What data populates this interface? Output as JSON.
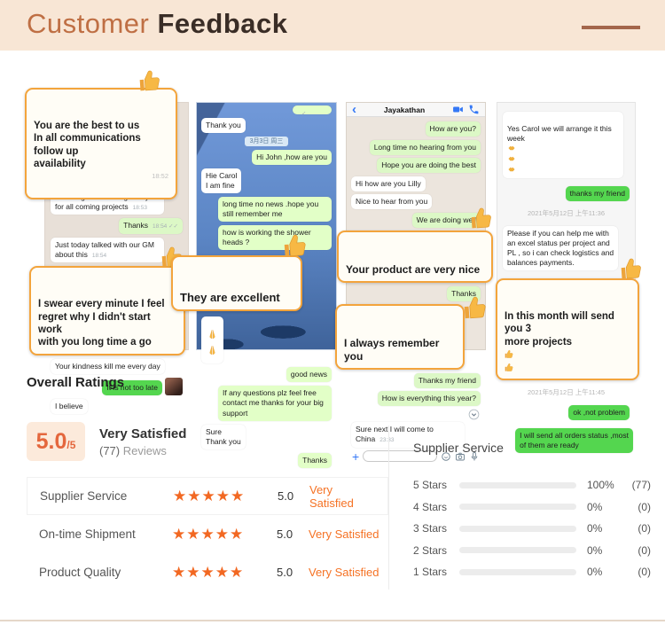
{
  "header": {
    "title_light": "Customer",
    "title_bold": "Feedback"
  },
  "colors": {
    "accent_orange": "#f57224",
    "star_orange": "#f26822",
    "bar_fill": "#f2690d",
    "callout_border": "#f3a43c",
    "bubble_green_pale": "#dcf8c6",
    "bubble_green_bright": "#54d64f",
    "header_bg": "#f8e6d5",
    "title_orange": "#bf6f44",
    "accent_line_brown": "#a4664b"
  },
  "icons": {
    "thumbs_up": "👍",
    "praying_hands": "🙏",
    "handshake": "🤝",
    "double_check": "✓✓",
    "star": "★",
    "back_chevron": "‹",
    "plus": "+"
  },
  "panels": [
    {
      "messages": [
        {
          "type": "callout",
          "text": "You are the best to us\nIn all communications follow up\navailability",
          "time": "18:52"
        },
        {
          "type": "left",
          "text": "We will go on working with you for all coming projects",
          "time": "18:53"
        },
        {
          "type": "right",
          "text": "Thanks",
          "time": "18:54 ✓✓"
        },
        {
          "type": "left",
          "text": "Just today talked with our GM about this",
          "time": "18:54"
        },
        {
          "type": "callout",
          "text": "I swear every minute I feel\nregret why I didn't start work\nwith you long time a go"
        },
        {
          "type": "left",
          "text": "Your kindness kill me every day"
        },
        {
          "type": "right-bright",
          "text": "It is not too late"
        },
        {
          "type": "left",
          "text": "I believe"
        }
      ]
    },
    {
      "messages": [
        {
          "type": "right",
          "text": "",
          "time": "✓"
        },
        {
          "type": "left",
          "text": "Thank you"
        },
        {
          "type": "date",
          "text": "3月3日 周三"
        },
        {
          "type": "right",
          "text": "Hi John ,how are you"
        },
        {
          "type": "left",
          "text": "Hie Carol\nI am fine"
        },
        {
          "type": "right",
          "text": "long time no news .hope you still remember me"
        },
        {
          "type": "right",
          "text": "how is working the shower heads ?"
        },
        {
          "type": "callout",
          "text": "They are excellent"
        },
        {
          "type": "left",
          "text": "",
          "emoji": "🙏🙏"
        },
        {
          "type": "right",
          "text": "good news"
        },
        {
          "type": "right",
          "text": "If any questions plz feel free contact me thanks for your big support"
        },
        {
          "type": "left",
          "text": "Sure\nThank you"
        },
        {
          "type": "right",
          "text": "Thanks"
        }
      ]
    },
    {
      "contact": "Jayakathan",
      "messages": [
        {
          "type": "right",
          "text": "How are you?"
        },
        {
          "type": "right",
          "text": "Long time no hearing from you"
        },
        {
          "type": "right",
          "text": "Hope you are doing the best"
        },
        {
          "type": "left",
          "text": "Hi how are you Lilly"
        },
        {
          "type": "left",
          "text": "Nice to hear from you"
        },
        {
          "type": "right",
          "text": "We are doing well"
        },
        {
          "type": "callout",
          "text": "Your product are very nice"
        },
        {
          "type": "right",
          "text": "Thanks"
        },
        {
          "type": "callout",
          "text": "I always remember you"
        },
        {
          "type": "right",
          "text": "Thanks my friend"
        },
        {
          "type": "right",
          "text": "How is everything this year?"
        },
        {
          "type": "left",
          "text": "Sure next I will come to China",
          "time": "23:33"
        }
      ]
    },
    {
      "messages": [
        {
          "type": "left",
          "text": "Yes Carol we will arrange it this week",
          "emoji": "🤝🤝🤝"
        },
        {
          "type": "right-bright",
          "text": "thanks my friend"
        },
        {
          "type": "date",
          "text": "2021年5月12日 上午11:36"
        },
        {
          "type": "left",
          "text": "Please if you can help me with\nan excel status per project and\nPL , so i can check logistics and\nbalances payments."
        },
        {
          "type": "callout",
          "text": "In this month will send you 3\nmore projects",
          "emoji": "👍👍"
        },
        {
          "type": "date",
          "text": "2021年5月12日 上午11:45"
        },
        {
          "type": "right-bright",
          "text": "ok ,not problem"
        },
        {
          "type": "right-bright",
          "text": "I will send all orders status ,most\nof them are ready"
        }
      ]
    }
  ],
  "ratings": {
    "heading": "Overall Ratings",
    "score": "5.0",
    "scale": "/5",
    "label": "Very Satisfied",
    "reviews_count": "(77)",
    "reviews_word": "Reviews",
    "rows": [
      {
        "label": "Supplier Service",
        "stars": "★★★★★",
        "score": "5.0",
        "verdict": "Very Satisfied"
      },
      {
        "label": "On-time Shipment",
        "stars": "★★★★★",
        "score": "5.0",
        "verdict": "Very Satisfied"
      },
      {
        "label": "Product Quality",
        "stars": "★★★★★",
        "score": "5.0",
        "verdict": "Very Satisfied"
      }
    ]
  },
  "chart": {
    "title": "Supplier Service",
    "type": "bar",
    "rows": [
      {
        "label": "5 Stars",
        "pct": "100%",
        "value": 100,
        "count": "(77)"
      },
      {
        "label": "4 Stars",
        "pct": "0%",
        "value": 0,
        "count": "(0)"
      },
      {
        "label": "3 Stars",
        "pct": "0%",
        "value": 0,
        "count": "(0)"
      },
      {
        "label": "2 Stars",
        "pct": "0%",
        "value": 0,
        "count": "(0)"
      },
      {
        "label": "1 Stars",
        "pct": "0%",
        "value": 0,
        "count": "(0)"
      }
    ]
  }
}
